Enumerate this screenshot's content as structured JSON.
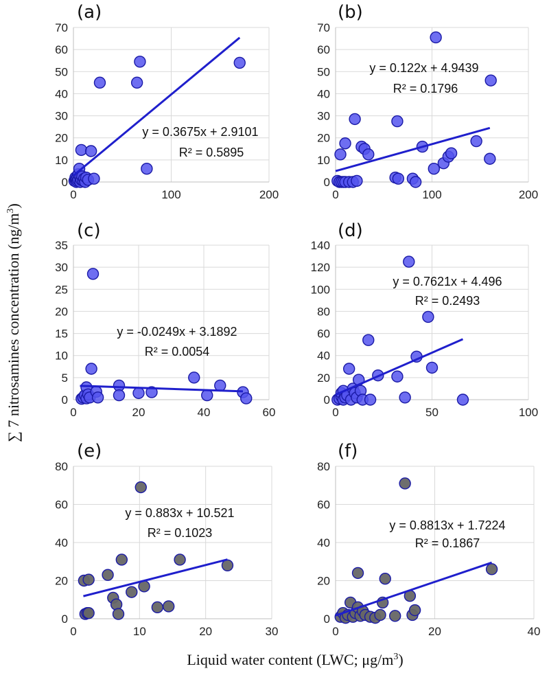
{
  "figure": {
    "ylabel": {
      "sym": "∑ 7 nitrosamines concentration (ng/m",
      "sup": "3",
      "end": ")"
    },
    "xlabel": {
      "main": "Liquid water content (LWC; μg/m",
      "sup": "3",
      "end": ")"
    },
    "colors": {
      "blue_marker": "#5555ee",
      "gray_marker": "#666666",
      "marker_edge": "#1a1aa6",
      "trend": "#1f1fcc"
    }
  },
  "chart_data": [
    {
      "panel": "(a)",
      "type": "scatter",
      "marker": "blue",
      "xlim": [
        0,
        200
      ],
      "ylim": [
        0,
        70
      ],
      "xticks": [
        0,
        100,
        200
      ],
      "yticks": [
        0,
        10,
        20,
        30,
        40,
        50,
        60,
        70
      ],
      "points": [
        [
          1,
          0.5
        ],
        [
          2,
          1
        ],
        [
          2,
          2
        ],
        [
          3,
          0
        ],
        [
          3,
          1.5
        ],
        [
          4,
          0.5
        ],
        [
          4,
          2.5
        ],
        [
          5,
          1
        ],
        [
          5,
          3.5
        ],
        [
          6,
          6
        ],
        [
          7,
          0
        ],
        [
          7,
          2
        ],
        [
          8,
          1
        ],
        [
          9,
          2.5
        ],
        [
          10,
          0.5
        ],
        [
          11,
          1.5
        ],
        [
          12,
          0
        ],
        [
          13,
          2
        ],
        [
          15,
          1
        ],
        [
          8,
          14.5
        ],
        [
          18,
          14
        ],
        [
          21,
          1.5
        ],
        [
          27,
          45
        ],
        [
          65,
          45
        ],
        [
          68,
          54.5
        ],
        [
          75,
          6
        ],
        [
          170,
          54
        ]
      ],
      "trend": {
        "slope": 0.3675,
        "intercept": 2.9101,
        "x_range": [
          0,
          170
        ]
      },
      "equation": "y = 0.3675x + 2.9101",
      "r2": "R² = 0.5895"
    },
    {
      "panel": "(b)",
      "type": "scatter",
      "marker": "blue",
      "xlim": [
        0,
        200
      ],
      "ylim": [
        0,
        70
      ],
      "xticks": [
        0,
        100,
        200
      ],
      "yticks": [
        0,
        10,
        20,
        30,
        40,
        50,
        60,
        70
      ],
      "points": [
        [
          2,
          0.5
        ],
        [
          4,
          0
        ],
        [
          6,
          0
        ],
        [
          8,
          0
        ],
        [
          10,
          0
        ],
        [
          14,
          0
        ],
        [
          18,
          0
        ],
        [
          22,
          0.5
        ],
        [
          5,
          12.5
        ],
        [
          10,
          17.5
        ],
        [
          20,
          28.5
        ],
        [
          27,
          16
        ],
        [
          30,
          15
        ],
        [
          34,
          12.5
        ],
        [
          62,
          2
        ],
        [
          64,
          27.5
        ],
        [
          65,
          1.5
        ],
        [
          80,
          1.5
        ],
        [
          83,
          0
        ],
        [
          90,
          16
        ],
        [
          102,
          6
        ],
        [
          104,
          65.5
        ],
        [
          112,
          8.5
        ],
        [
          117,
          11.5
        ],
        [
          120,
          13
        ],
        [
          146,
          18.5
        ],
        [
          160,
          10.5
        ],
        [
          161,
          46
        ]
      ],
      "trend": {
        "slope": 0.122,
        "intercept": 4.9439,
        "x_range": [
          0,
          160
        ]
      },
      "equation": "y = 0.122x + 4.9439",
      "r2": "R² = 0.1796"
    },
    {
      "panel": "(c)",
      "type": "scatter",
      "marker": "blue",
      "xlim": [
        0,
        60
      ],
      "ylim": [
        0,
        35
      ],
      "xticks": [
        0,
        20,
        40,
        60
      ],
      "yticks": [
        0,
        5,
        10,
        15,
        20,
        25,
        30,
        35
      ],
      "points": [
        [
          2.5,
          0.2
        ],
        [
          3,
          0.5
        ],
        [
          3.5,
          1
        ],
        [
          4,
          0.3
        ],
        [
          4,
          2.8
        ],
        [
          4.5,
          1.2
        ],
        [
          5,
          0.5
        ],
        [
          5.5,
          7
        ],
        [
          6,
          28.5
        ],
        [
          7,
          1.8
        ],
        [
          7.5,
          0.5
        ],
        [
          14,
          3.2
        ],
        [
          14,
          1
        ],
        [
          20,
          1.5
        ],
        [
          24,
          1.7
        ],
        [
          37,
          5
        ],
        [
          41,
          1
        ],
        [
          45,
          3.2
        ],
        [
          52,
          1.7
        ],
        [
          53,
          0.3
        ]
      ],
      "trend": {
        "slope": -0.0249,
        "intercept": 3.1892,
        "x_range": [
          2,
          52
        ]
      },
      "equation": "y = -0.0249x + 3.1892",
      "r2": "R² = 0.0054"
    },
    {
      "panel": "(d)",
      "type": "scatter",
      "marker": "blue",
      "xlim": [
        0,
        100
      ],
      "ylim": [
        0,
        140
      ],
      "xticks": [
        0,
        50,
        100
      ],
      "yticks": [
        0,
        20,
        40,
        60,
        80,
        100,
        120,
        140
      ],
      "points": [
        [
          1,
          0
        ],
        [
          2,
          1
        ],
        [
          3,
          3
        ],
        [
          3,
          6
        ],
        [
          4,
          0
        ],
        [
          4,
          8
        ],
        [
          5,
          2
        ],
        [
          6,
          4
        ],
        [
          7,
          28
        ],
        [
          8,
          0
        ],
        [
          9,
          10
        ],
        [
          10,
          6
        ],
        [
          11,
          2
        ],
        [
          12,
          18
        ],
        [
          13,
          8
        ],
        [
          14,
          0
        ],
        [
          17,
          54
        ],
        [
          18,
          0
        ],
        [
          22,
          22
        ],
        [
          32,
          21
        ],
        [
          36,
          2
        ],
        [
          38,
          125
        ],
        [
          42,
          39
        ],
        [
          48,
          75
        ],
        [
          50,
          29
        ],
        [
          66,
          0
        ]
      ],
      "trend": {
        "slope": 0.7621,
        "intercept": 4.496,
        "x_range": [
          0,
          66
        ]
      },
      "equation": "y = 0.7621x + 4.496",
      "r2": "R² = 0.2493"
    },
    {
      "panel": "(e)",
      "type": "scatter",
      "marker": "gray",
      "xlim": [
        0,
        30
      ],
      "ylim": [
        0,
        80
      ],
      "xticks": [
        0,
        10,
        20,
        30
      ],
      "yticks": [
        0,
        20,
        40,
        60,
        80
      ],
      "points": [
        [
          1.6,
          20
        ],
        [
          1.8,
          2.5
        ],
        [
          2.1,
          3
        ],
        [
          2.3,
          20.5
        ],
        [
          2.3,
          3
        ],
        [
          5.2,
          23
        ],
        [
          6,
          11
        ],
        [
          6.5,
          7.5
        ],
        [
          6.8,
          2.5
        ],
        [
          7.3,
          31
        ],
        [
          8.8,
          14
        ],
        [
          10.2,
          69
        ],
        [
          10.7,
          17
        ],
        [
          12.7,
          6
        ],
        [
          14.4,
          6.5
        ],
        [
          16.1,
          31
        ],
        [
          23.3,
          28
        ]
      ],
      "trend": {
        "slope": 0.883,
        "intercept": 10.521,
        "x_range": [
          1.5,
          23.3
        ]
      },
      "equation": "y = 0.883x + 10.521",
      "r2": "R² = 0.1023"
    },
    {
      "panel": "(f)",
      "type": "scatter",
      "marker": "gray",
      "xlim": [
        0,
        40
      ],
      "ylim": [
        0,
        80
      ],
      "xticks": [
        0,
        20,
        40
      ],
      "yticks": [
        0,
        20,
        40,
        60,
        80
      ],
      "points": [
        [
          1,
          1
        ],
        [
          1.5,
          3
        ],
        [
          2,
          0.5
        ],
        [
          2.5,
          2
        ],
        [
          3,
          8.5
        ],
        [
          3.5,
          1
        ],
        [
          4,
          3
        ],
        [
          4.5,
          24
        ],
        [
          4.5,
          6
        ],
        [
          5,
          1.5
        ],
        [
          5.5,
          4
        ],
        [
          6,
          2
        ],
        [
          7,
          1
        ],
        [
          8,
          0.5
        ],
        [
          9,
          2
        ],
        [
          9.5,
          8.5
        ],
        [
          10,
          21
        ],
        [
          12,
          1.5
        ],
        [
          14,
          71
        ],
        [
          15,
          12
        ],
        [
          15.5,
          2
        ],
        [
          16,
          4.5
        ],
        [
          31.5,
          26
        ]
      ],
      "trend": {
        "slope": 0.8813,
        "intercept": 1.7224,
        "x_range": [
          0,
          31.5
        ]
      },
      "equation": "y = 0.8813x + 1.7224",
      "r2": "R² = 0.1867"
    }
  ]
}
